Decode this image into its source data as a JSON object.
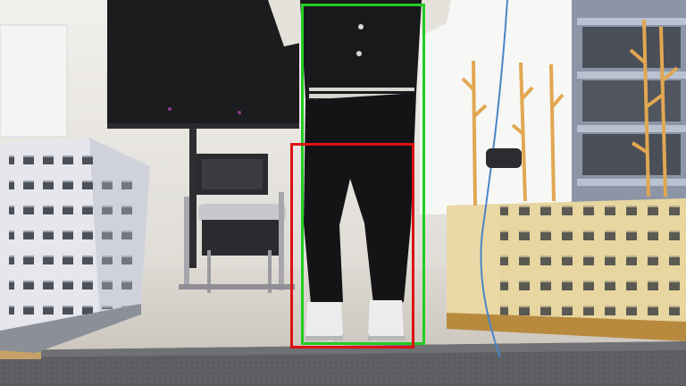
{
  "image": {
    "colors": {
      "wall": "#eceae6",
      "ceiling_light": "#f6f5f2",
      "floor": "#cfcac2",
      "rug": "#5a5c5f",
      "monitor": "#1d1d1f",
      "shelf": "#8a93a3",
      "building_white": "#e8e8ee",
      "building_yellow": "#e9d9a4",
      "cardboard": "#c9a26b",
      "tree": "#e0a650",
      "person_dark": "#17171a",
      "person_jacket_light": "#e7e4de"
    }
  },
  "detections": [
    {
      "id": "box-green",
      "color": "#22cc22"
    },
    {
      "id": "box-red",
      "color": "#dd1111"
    }
  ]
}
